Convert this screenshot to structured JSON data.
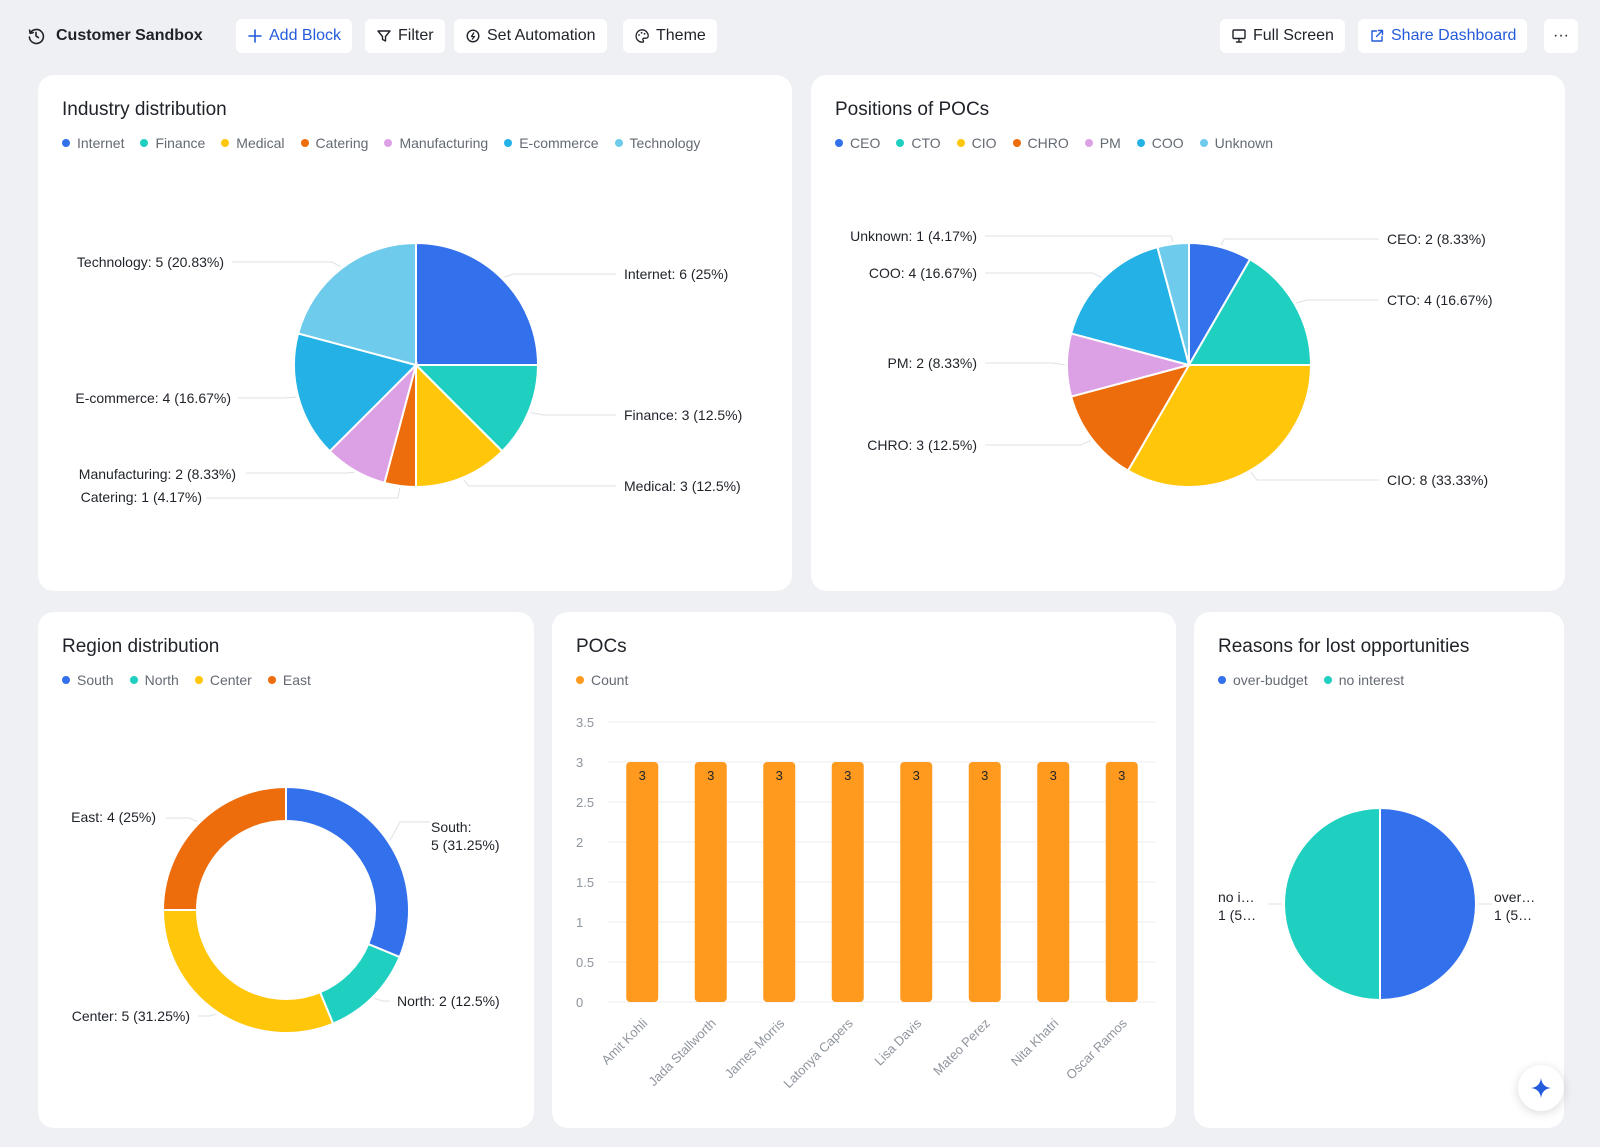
{
  "header": {
    "title": "Customer Sandbox",
    "add_block": "Add Block",
    "filter": "Filter",
    "set_automation": "Set Automation",
    "theme": "Theme",
    "full_screen": "Full Screen",
    "share_dashboard": "Share Dashboard",
    "more": "···"
  },
  "colors": {
    "blue": "#3370eb",
    "teal": "#1fcfbf",
    "yellow": "#ffc60a",
    "orange": "#ed6d0c",
    "purple": "#dca1e4",
    "sky": "#24b2e6",
    "light_sky": "#6ecbeb",
    "bar": "#ff9a1f",
    "link": "#245bdb"
  },
  "chart_data": [
    {
      "id": "industry",
      "type": "pie",
      "title": "Industry distribution",
      "legend_position": "top-left",
      "slices": [
        {
          "name": "Internet",
          "value": 6,
          "label": "Internet: 6 (25%)",
          "color": "#3370eb"
        },
        {
          "name": "Finance",
          "value": 3,
          "label": "Finance: 3 (12.5%)",
          "color": "#1fcfbf"
        },
        {
          "name": "Medical",
          "value": 3,
          "label": "Medical: 3 (12.5%)",
          "color": "#ffc60a"
        },
        {
          "name": "Catering",
          "value": 1,
          "label": "Catering: 1 (4.17%)",
          "color": "#ed6d0c"
        },
        {
          "name": "Manufacturing",
          "value": 2,
          "label": "Manufacturing: 2 (8.33%)",
          "color": "#dca1e4"
        },
        {
          "name": "E-commerce",
          "value": 4,
          "label": "E-commerce: 4 (16.67%)",
          "color": "#24b2e6"
        },
        {
          "name": "Technology",
          "value": 5,
          "label": "Technology: 5 (20.83%)",
          "color": "#6ecbeb"
        }
      ]
    },
    {
      "id": "positions",
      "type": "pie",
      "title": "Positions of POCs",
      "legend_position": "top-left",
      "slices": [
        {
          "name": "CEO",
          "value": 2,
          "label": "CEO: 2 (8.33%)",
          "color": "#3370eb"
        },
        {
          "name": "CTO",
          "value": 4,
          "label": "CTO: 4 (16.67%)",
          "color": "#1fcfbf"
        },
        {
          "name": "CIO",
          "value": 8,
          "label": "CIO: 8 (33.33%)",
          "color": "#ffc60a"
        },
        {
          "name": "CHRO",
          "value": 3,
          "label": "CHRO: 3 (12.5%)",
          "color": "#ed6d0c"
        },
        {
          "name": "PM",
          "value": 2,
          "label": "PM: 2 (8.33%)",
          "color": "#dca1e4"
        },
        {
          "name": "COO",
          "value": 4,
          "label": "COO: 4 (16.67%)",
          "color": "#24b2e6"
        },
        {
          "name": "Unknown",
          "value": 1,
          "label": "Unknown: 1 (4.17%)",
          "color": "#6ecbeb"
        }
      ]
    },
    {
      "id": "region",
      "type": "pie",
      "donut": true,
      "title": "Region distribution",
      "legend_position": "top-left",
      "slices": [
        {
          "name": "South",
          "value": 5,
          "label": "South: 5 (31.25%)",
          "label_lines": [
            "South:",
            "5 (31.25%)"
          ],
          "color": "#3370eb"
        },
        {
          "name": "North",
          "value": 2,
          "label": "North: 2 (12.5%)",
          "label_lines": [
            "North: 2 (12.5%)"
          ],
          "color": "#1fcfbf"
        },
        {
          "name": "Center",
          "value": 5,
          "label": "Center: 5 (31.25%)",
          "label_lines": [
            "Center: 5 (31.25%)"
          ],
          "color": "#ffc60a"
        },
        {
          "name": "East",
          "value": 4,
          "label": "East: 4 (25%)",
          "label_lines": [
            "East: 4 (25%)"
          ],
          "color": "#ed6d0c"
        }
      ]
    },
    {
      "id": "pocs",
      "type": "bar",
      "title": "POCs",
      "legend_position": "top-left",
      "categories": [
        "Amit Kohli",
        "Jada Stallworth",
        "James Morris",
        "Latonya Capers",
        "Lisa Davis",
        "Mateo Perez",
        "Nita Khatri",
        "Oscar Ramos"
      ],
      "series": [
        {
          "name": "Count",
          "values": [
            3,
            3,
            3,
            3,
            3,
            3,
            3,
            3
          ],
          "color": "#ff9a1f"
        }
      ],
      "ylim": [
        0,
        3.5
      ],
      "yticks": [
        "0",
        "0.5",
        "1",
        "1.5",
        "2",
        "2.5",
        "3",
        "3.5"
      ],
      "grid": true
    },
    {
      "id": "lost",
      "type": "pie",
      "title": "Reasons for lost opportunities",
      "legend_position": "top-left",
      "slices": [
        {
          "name": "over-budget",
          "value": 1,
          "label_lines": [
            "over…",
            "1 (5…"
          ],
          "color": "#3370eb"
        },
        {
          "name": "no interest",
          "value": 1,
          "label_lines": [
            "no i…",
            "1 (5…"
          ],
          "color": "#1fcfbf"
        }
      ]
    }
  ]
}
